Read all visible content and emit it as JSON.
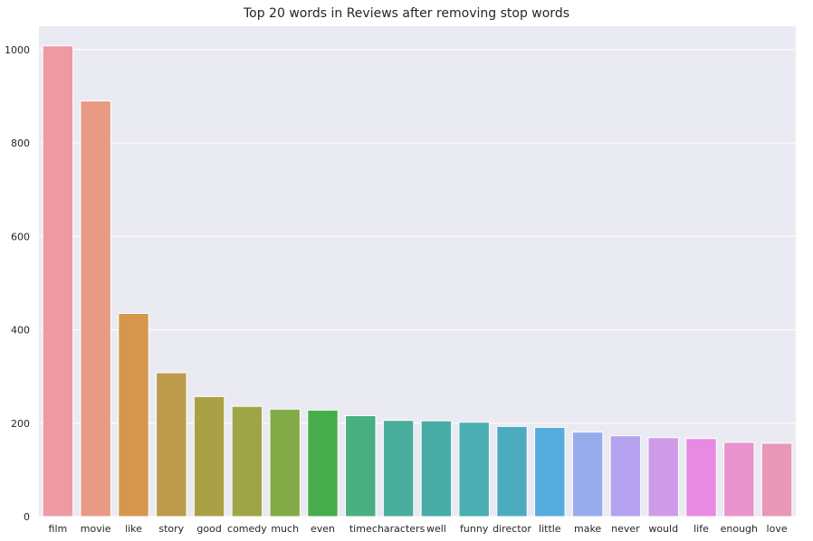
{
  "chart_data": {
    "type": "bar",
    "title": "Top 20 words in Reviews after removing stop words",
    "xlabel": "",
    "ylabel": "",
    "categories": [
      "film",
      "movie",
      "like",
      "story",
      "good",
      "comedy",
      "much",
      "even",
      "time",
      "characters",
      "well",
      "funny",
      "director",
      "little",
      "make",
      "never",
      "would",
      "life",
      "enough",
      "love"
    ],
    "values": [
      1008,
      890,
      435,
      308,
      257,
      236,
      230,
      228,
      216,
      206,
      205,
      202,
      193,
      191,
      181,
      173,
      169,
      167,
      159,
      157
    ],
    "ylim": [
      0,
      1050
    ],
    "yticks": [
      0,
      200,
      400,
      600,
      800,
      1000
    ],
    "grid": true,
    "legend": "none",
    "background_color": "#eaeaf2",
    "grid_color": "#ffffff",
    "bar_colors": [
      "#ed9aa3",
      "#e89a84",
      "#d5964d",
      "#bc9b4c",
      "#aba045",
      "#9ea546",
      "#82ab48",
      "#47ad4c",
      "#48b081",
      "#49ae9b",
      "#48ada7",
      "#4aaeb2",
      "#4dabc0",
      "#56acdd",
      "#97acea",
      "#b5a2ee",
      "#cf9be8",
      "#e889e2",
      "#e893cb",
      "#e897b6"
    ]
  }
}
